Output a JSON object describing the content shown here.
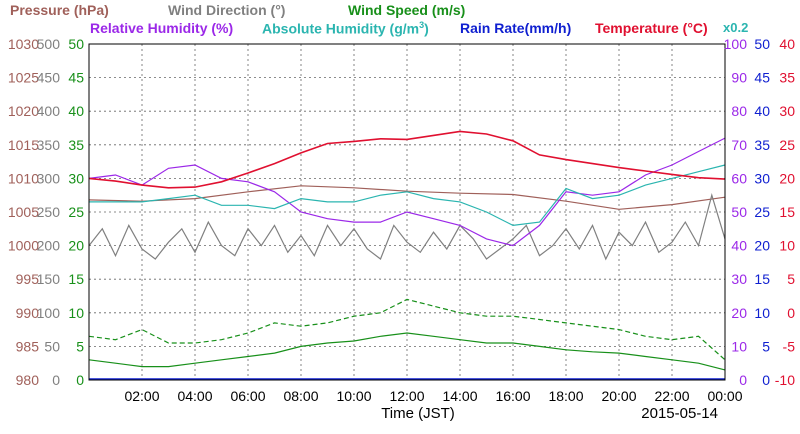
{
  "colors": {
    "pressure": "#a0605a",
    "wind_direction": "#808080",
    "wind_speed": "#18901a",
    "relative_humidity": "#9b28e8",
    "absolute_humidity": "#2bb5b0",
    "rain_rate": "#0f1fd0",
    "temperature": "#e01030",
    "grid": "#666666",
    "frame": "#000000",
    "rain_baseline": "#0f1fd0"
  },
  "legend": {
    "pressure_label": "Pressure (hPa)",
    "wind_direction_label": "Wind Direction (°)",
    "wind_speed_label": "Wind Speed (m/s)",
    "relative_humidity_label": "Relative Humidity (%)",
    "absolute_humidity_label": "Absolute Humidity (g/m",
    "absolute_humidity_exp": "3",
    "absolute_humidity_close": ")",
    "rain_rate_label": "Rain Rate(mm/h)",
    "temperature_label": "Temperature (°C)",
    "ah_scale_label": "x0.2"
  },
  "xlabel": "Time (JST)",
  "date_label": "2015-05-14",
  "chart_data": {
    "type": "line",
    "x_ticks": [
      "02:00",
      "04:00",
      "06:00",
      "08:00",
      "10:00",
      "12:00",
      "14:00",
      "16:00",
      "18:00",
      "20:00",
      "22:00",
      "00:00"
    ],
    "xlim_hours": [
      0,
      24
    ],
    "axes": {
      "pressure": {
        "ylim": [
          980,
          1030
        ],
        "ticks": [
          "980",
          "985",
          "990",
          "995",
          "1000",
          "1005",
          "1010",
          "1015",
          "1020",
          "1025",
          "1030"
        ]
      },
      "wind_direction": {
        "ylim": [
          0,
          500
        ],
        "ticks": [
          "0",
          "50",
          "100",
          "150",
          "200",
          "250",
          "300",
          "350",
          "400",
          "450",
          "500"
        ]
      },
      "wind_speed": {
        "ylim": [
          0,
          50
        ],
        "ticks": [
          "0",
          "5",
          "10",
          "15",
          "20",
          "25",
          "30",
          "35",
          "40",
          "45",
          "50"
        ]
      },
      "relative_humidity": {
        "ylim": [
          0,
          100
        ],
        "ticks": [
          "0",
          "10",
          "20",
          "30",
          "40",
          "50",
          "60",
          "70",
          "80",
          "90",
          "100"
        ]
      },
      "rain_rate": {
        "ylim": [
          0,
          50
        ],
        "ticks": [
          "0",
          "5",
          "10",
          "15",
          "20",
          "25",
          "30",
          "35",
          "40",
          "45",
          "50"
        ]
      },
      "temperature": {
        "ylim": [
          -10,
          40
        ],
        "ticks": [
          "-10",
          "-5",
          "0",
          "5",
          "10",
          "15",
          "20",
          "25",
          "30",
          "35",
          "40"
        ]
      }
    },
    "series": [
      {
        "name": "Pressure (hPa)",
        "axis": "pressure",
        "x": [
          0,
          2,
          4,
          6,
          8,
          10,
          12,
          14,
          16,
          18,
          20,
          22,
          24
        ],
        "y": [
          1006.8,
          1006.6,
          1007.0,
          1008.0,
          1008.9,
          1008.6,
          1008.1,
          1007.8,
          1007.6,
          1006.6,
          1005.4,
          1006.1,
          1007.2
        ]
      },
      {
        "name": "Wind Direction (°)",
        "axis": "wind_direction",
        "x": [
          0,
          0.5,
          1,
          1.5,
          2,
          2.5,
          3,
          3.5,
          4,
          4.5,
          5,
          5.5,
          6,
          6.5,
          7,
          7.5,
          8,
          8.5,
          9,
          9.5,
          10,
          10.5,
          11,
          11.5,
          12,
          12.5,
          13,
          13.5,
          14,
          14.5,
          15,
          15.5,
          16,
          16.5,
          17,
          17.5,
          18,
          18.5,
          19,
          19.5,
          20,
          20.5,
          21,
          21.5,
          22,
          22.5,
          23,
          23.5,
          24
        ],
        "y": [
          200,
          225,
          185,
          230,
          195,
          180,
          205,
          225,
          190,
          235,
          200,
          185,
          225,
          200,
          230,
          190,
          215,
          185,
          230,
          200,
          225,
          195,
          180,
          230,
          205,
          190,
          220,
          195,
          230,
          210,
          180,
          195,
          210,
          230,
          185,
          200,
          225,
          195,
          230,
          180,
          220,
          200,
          235,
          190,
          205,
          235,
          200,
          275,
          210
        ]
      },
      {
        "name": "Wind Speed (m/s)",
        "axis": "wind_speed",
        "x": [
          0,
          1,
          2,
          3,
          4,
          5,
          6,
          7,
          8,
          9,
          10,
          11,
          12,
          13,
          14,
          15,
          16,
          17,
          18,
          19,
          20,
          21,
          22,
          23,
          24
        ],
        "y": [
          3.0,
          2.5,
          2.0,
          2.0,
          2.5,
          3.0,
          3.5,
          4.0,
          5.0,
          5.5,
          5.8,
          6.5,
          7.0,
          6.5,
          6.0,
          5.5,
          5.5,
          5.0,
          4.5,
          4.2,
          4.0,
          3.5,
          3.0,
          2.5,
          1.5
        ]
      },
      {
        "name": "Wind Speed gust (m/s)",
        "axis": "wind_speed",
        "dashed": true,
        "x": [
          0,
          1,
          2,
          3,
          4,
          5,
          6,
          7,
          8,
          9,
          10,
          11,
          12,
          13,
          14,
          15,
          16,
          17,
          18,
          19,
          20,
          21,
          22,
          23,
          24
        ],
        "y": [
          6.5,
          6.0,
          7.5,
          5.5,
          5.5,
          6.0,
          7.0,
          8.5,
          8.0,
          8.5,
          9.5,
          10.0,
          12.0,
          11.0,
          10.0,
          9.5,
          9.5,
          9.0,
          8.5,
          8.0,
          7.5,
          6.5,
          6.0,
          6.5,
          3.0
        ]
      },
      {
        "name": "Relative Humidity (%)",
        "axis": "relative_humidity",
        "x": [
          0,
          1,
          2,
          3,
          4,
          5,
          6,
          7,
          8,
          9,
          10,
          11,
          12,
          13,
          14,
          15,
          16,
          17,
          18,
          19,
          20,
          21,
          22,
          23,
          24
        ],
        "y": [
          60,
          61,
          58,
          63,
          64,
          60,
          59,
          56,
          50,
          48,
          47,
          47,
          50,
          48,
          46,
          42,
          40,
          46,
          56,
          55,
          56,
          61,
          64,
          68,
          72
        ]
      },
      {
        "name": "Absolute Humidity (g/m3)",
        "axis": "relative_humidity",
        "x": [
          0,
          1,
          2,
          3,
          4,
          5,
          6,
          7,
          8,
          9,
          10,
          11,
          12,
          13,
          14,
          15,
          16,
          17,
          18,
          19,
          20,
          21,
          22,
          23,
          24
        ],
        "y": [
          53,
          53,
          53,
          54,
          55,
          52,
          52,
          51,
          54,
          53,
          53,
          55,
          56,
          54,
          53,
          50,
          46,
          47,
          57,
          54,
          55,
          58,
          60,
          62,
          64
        ]
      },
      {
        "name": "Temperature (°C)",
        "axis": "temperature",
        "x": [
          0,
          1,
          2,
          3,
          4,
          5,
          6,
          7,
          8,
          9,
          10,
          11,
          12,
          13,
          14,
          15,
          16,
          17,
          18,
          19,
          20,
          21,
          22,
          23,
          24
        ],
        "y": [
          20.0,
          19.6,
          19.0,
          18.6,
          18.7,
          19.5,
          20.8,
          22.2,
          23.8,
          25.2,
          25.5,
          25.9,
          25.8,
          26.4,
          27.0,
          26.6,
          25.6,
          23.5,
          22.8,
          22.2,
          21.6,
          21.1,
          20.6,
          20.1,
          19.9
        ]
      }
    ]
  }
}
